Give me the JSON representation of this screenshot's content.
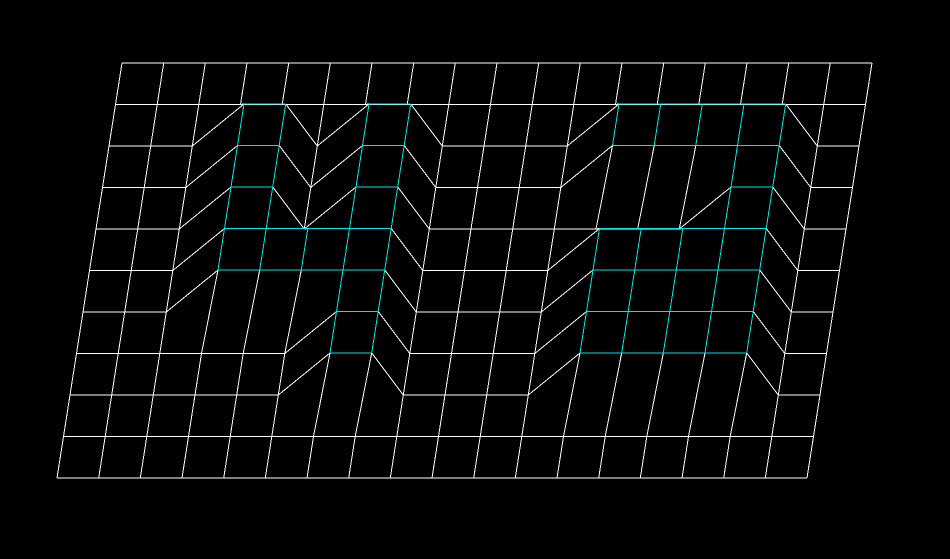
{
  "colors": {
    "background": "#000000",
    "grid": "#ffffff",
    "highlight": "#00e5e5"
  },
  "grid": {
    "columns": 18,
    "rows": 10
  },
  "highlighted_shapes": {
    "description_color_key": "highlight",
    "digit_shapes": [
      "4",
      "2"
    ]
  }
}
